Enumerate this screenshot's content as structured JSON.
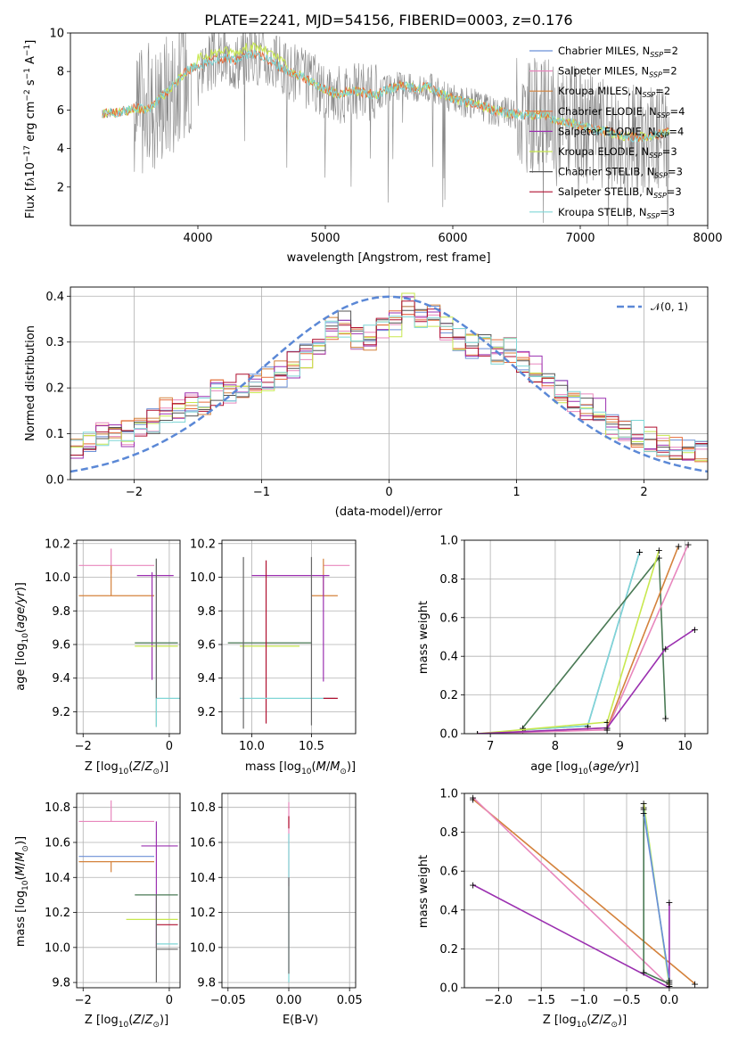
{
  "page_title": "PLATE=2241, MJD=54156, FIBERID=0003, z=0.176",
  "colors": {
    "Chabrier MILES": "#6b8fd6",
    "Salpeter MILES": "#e887bd",
    "Kroupa MILES": "#d4823c",
    "Chabrier ELODIE": "#e56b3b",
    "Salpeter ELODIE": "#9b30b0",
    "Kroupa ELODIE": "#c8e84f",
    "Chabrier STELIB": "#555555",
    "Salpeter STELIB": "#b01030",
    "Kroupa STELIB": "#7fd6d6",
    "gauss": "#5b88d6",
    "grey_spectrum": "#888888",
    "green_line": "#4a7a55"
  },
  "chart_data": [
    {
      "id": "spectrum",
      "type": "line",
      "title": "PLATE=2241, MJD=54156, FIBERID=0003, z=0.176",
      "xlabel": "wavelength [Angstrom, rest frame]",
      "ylabel": "Flux [f_λ 10^-17 erg cm^-2 s^-1 A^-1]",
      "xlim": [
        3000,
        8000
      ],
      "ylim": [
        0,
        10
      ],
      "xticks": [
        "4000",
        "5000",
        "6000",
        "7000",
        "8000"
      ],
      "yticks": [
        "2",
        "4",
        "6",
        "8",
        "10"
      ],
      "legend_position": "right",
      "legend": [
        {
          "name": "Chabrier MILES",
          "nssp": "2"
        },
        {
          "name": "Salpeter MILES",
          "nssp": "2"
        },
        {
          "name": "Kroupa MILES",
          "nssp": "2"
        },
        {
          "name": "Chabrier ELODIE",
          "nssp": "4"
        },
        {
          "name": "Salpeter ELODIE",
          "nssp": "4"
        },
        {
          "name": "Kroupa ELODIE",
          "nssp": "3"
        },
        {
          "name": "Chabrier STELIB",
          "nssp": "3"
        },
        {
          "name": "Salpeter STELIB",
          "nssp": "3"
        },
        {
          "name": "Kroupa STELIB",
          "nssp": "3"
        }
      ],
      "continuum": {
        "x": [
          3250,
          3400,
          3500,
          3600,
          3700,
          3800,
          3900,
          4000,
          4100,
          4200,
          4300,
          4400,
          4500,
          4600,
          4700,
          4800,
          4900,
          5000,
          5100,
          5200,
          5300,
          5400,
          5500,
          5600,
          5700,
          5800,
          5900,
          6000,
          6100,
          6200,
          6300,
          6400,
          6500,
          6600,
          6700,
          6800,
          6900,
          7000,
          7100,
          7200,
          7300,
          7400,
          7500,
          7600,
          7700
        ],
        "y": [
          5.8,
          5.9,
          6.1,
          6.0,
          6.6,
          7.2,
          8.0,
          8.3,
          8.5,
          8.7,
          8.6,
          8.9,
          8.8,
          8.4,
          8.0,
          7.8,
          7.4,
          7.1,
          6.8,
          7.0,
          6.9,
          6.8,
          7.1,
          7.3,
          7.1,
          7.2,
          6.9,
          6.6,
          6.4,
          6.3,
          6.0,
          5.9,
          5.8,
          5.7,
          5.8,
          5.5,
          5.4,
          5.2,
          5.0,
          4.9,
          4.7,
          4.6,
          4.6,
          4.7,
          4.9
        ]
      }
    },
    {
      "id": "residuals",
      "type": "histogram",
      "xlabel": "(data-model)/error",
      "ylabel": "Normed distribution",
      "xlim": [
        -2.5,
        2.5
      ],
      "ylim": [
        0,
        0.42
      ],
      "xticks": [
        "−2",
        "−1",
        "0",
        "1",
        "2"
      ],
      "yticks": [
        "0.0",
        "0.1",
        "0.2",
        "0.3",
        "0.4"
      ],
      "legend_position": "top-right",
      "legend": [
        {
          "name": "𝒩(0, 1)"
        }
      ],
      "bins": [
        -2.5,
        -2.4,
        -2.3,
        -2.2,
        -2.1,
        -2.0,
        -1.9,
        -1.8,
        -1.7,
        -1.6,
        -1.5,
        -1.4,
        -1.3,
        -1.2,
        -1.1,
        -1.0,
        -0.9,
        -0.8,
        -0.7,
        -0.6,
        -0.5,
        -0.4,
        -0.3,
        -0.2,
        -0.1,
        0.0,
        0.1,
        0.2,
        0.3,
        0.4,
        0.5,
        0.6,
        0.7,
        0.8,
        0.9,
        1.0,
        1.1,
        1.2,
        1.3,
        1.4,
        1.5,
        1.6,
        1.7,
        1.8,
        1.9,
        2.0,
        2.1,
        2.2,
        2.3,
        2.4,
        2.5
      ],
      "mean_density": [
        0.06,
        0.09,
        0.1,
        0.11,
        0.1,
        0.12,
        0.13,
        0.15,
        0.15,
        0.16,
        0.17,
        0.19,
        0.19,
        0.2,
        0.21,
        0.22,
        0.23,
        0.25,
        0.27,
        0.28,
        0.33,
        0.34,
        0.31,
        0.31,
        0.33,
        0.34,
        0.38,
        0.35,
        0.36,
        0.33,
        0.31,
        0.29,
        0.29,
        0.28,
        0.28,
        0.26,
        0.24,
        0.21,
        0.19,
        0.17,
        0.16,
        0.15,
        0.12,
        0.1,
        0.1,
        0.09,
        0.08,
        0.07,
        0.07,
        0.06
      ]
    },
    {
      "id": "age_vs_Z",
      "type": "scatter",
      "xlabel": "Z [log10(Z/Z⊙)]",
      "ylabel": "age [log10(age/yr)]",
      "xlim": [
        -2.15,
        0.25
      ],
      "ylim": [
        9.07,
        10.22
      ],
      "xticks": [
        "−2",
        "0"
      ],
      "yticks": [
        "9.2",
        "9.4",
        "9.6",
        "9.8",
        "10.0",
        "10.2"
      ]
    },
    {
      "id": "age_vs_mass",
      "type": "scatter",
      "xlabel": "mass [log10(M/M⊙)]",
      "ylabel": "",
      "xlim": [
        9.75,
        10.87
      ],
      "ylim": [
        9.07,
        10.22
      ],
      "xticks": [
        "10.0",
        "10.5"
      ],
      "yticks": [
        "9.2",
        "9.4",
        "9.6",
        "9.8",
        "10.0",
        "10.2"
      ]
    },
    {
      "id": "weight_vs_age",
      "type": "line",
      "xlabel": "age [log10(age/yr)]",
      "ylabel": "mass weight",
      "xlim": [
        6.6,
        10.35
      ],
      "ylim": [
        0,
        1
      ],
      "xticks": [
        "7",
        "8",
        "9",
        "10"
      ],
      "yticks": [
        "0.0",
        "0.2",
        "0.4",
        "0.6",
        "0.8",
        "1.0"
      ]
    },
    {
      "id": "mass_vs_Z",
      "type": "scatter",
      "xlabel": "Z [log10(Z/Z⊙)]",
      "ylabel": "mass [log10(M/M⊙)]",
      "xlim": [
        -2.15,
        0.25
      ],
      "ylim": [
        9.77,
        10.88
      ],
      "xticks": [
        "−2",
        "0"
      ],
      "yticks": [
        "9.8",
        "10.0",
        "10.2",
        "10.4",
        "10.6",
        "10.8"
      ]
    },
    {
      "id": "mass_vs_ebv",
      "type": "scatter",
      "xlabel": "E(B-V)",
      "ylabel": "",
      "xlim": [
        -0.055,
        0.055
      ],
      "ylim": [
        9.77,
        10.88
      ],
      "xticks": [
        "−0.05",
        "0.00",
        "0.05"
      ],
      "yticks": [
        "9.8",
        "10.0",
        "10.2",
        "10.4",
        "10.6",
        "10.8"
      ]
    },
    {
      "id": "weight_vs_Z",
      "type": "line",
      "xlabel": "Z [log10(Z/Z⊙)]",
      "ylabel": "mass weight",
      "xlim": [
        -2.4,
        0.45
      ],
      "ylim": [
        0,
        1
      ],
      "xticks": [
        "−2.0",
        "−1.5",
        "−1.0",
        "−0.5",
        "0.0"
      ],
      "yticks": [
        "0.0",
        "0.2",
        "0.4",
        "0.6",
        "0.8",
        "1.0"
      ]
    }
  ]
}
